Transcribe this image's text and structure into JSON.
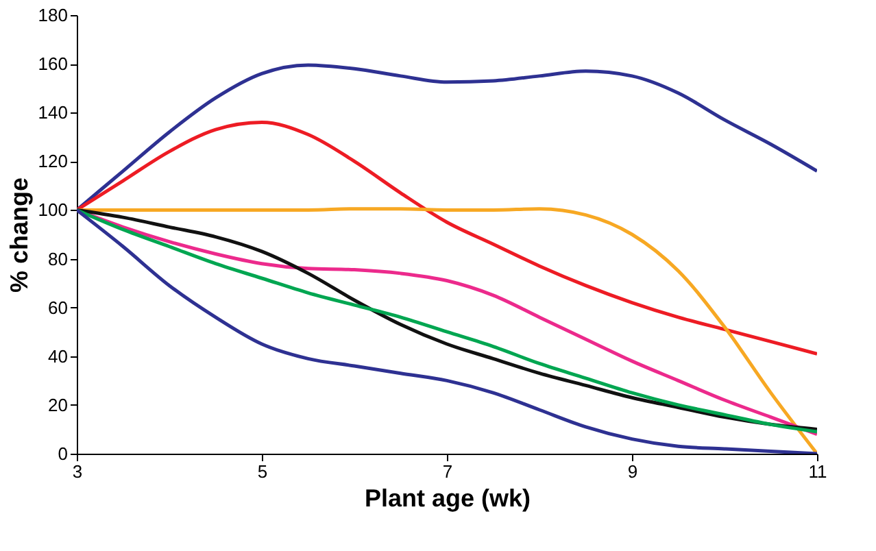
{
  "chart_data": {
    "type": "line",
    "xlabel": "Plant age (wk)",
    "ylabel": "% change",
    "x": [
      3,
      3.5,
      4,
      4.5,
      5,
      5.5,
      6,
      6.5,
      7,
      7.5,
      8,
      8.5,
      9,
      9.5,
      10,
      10.5,
      11
    ],
    "xlim": [
      3,
      11
    ],
    "xticks": [
      3,
      5,
      7,
      9,
      11
    ],
    "ylim": [
      0,
      180
    ],
    "yticks": [
      0,
      20,
      40,
      60,
      80,
      100,
      120,
      140,
      160,
      180
    ],
    "grid": false,
    "marker": "none",
    "line_style": "solid",
    "series": [
      {
        "color": "#2e3192",
        "values": [
          100,
          116,
          132,
          146,
          156,
          159.5,
          158,
          155,
          152.5,
          153,
          155,
          157,
          155,
          148,
          137,
          127,
          116
        ]
      },
      {
        "color": "#ed1c24",
        "values": [
          100,
          112,
          124,
          133,
          136,
          131,
          120,
          107,
          95,
          86,
          77,
          69,
          62,
          56,
          51,
          46,
          41
        ]
      },
      {
        "color": "#f7a823",
        "values": [
          100,
          100,
          100,
          100,
          100,
          100,
          100.5,
          100.5,
          100,
          100,
          100.5,
          98,
          90,
          75,
          52,
          25,
          0
        ]
      },
      {
        "color": "#ec2a8c",
        "values": [
          100,
          93,
          87,
          82,
          78,
          76,
          75.5,
          74,
          71,
          65,
          56,
          47,
          38,
          30,
          22,
          15,
          8
        ]
      },
      {
        "color": "#111111",
        "values": [
          100,
          97,
          93,
          89,
          83,
          74,
          63,
          53,
          45,
          39,
          33,
          28,
          23,
          19,
          15,
          12,
          10
        ]
      },
      {
        "color": "#00a651",
        "values": [
          100,
          92,
          85,
          78,
          72,
          66,
          61,
          56,
          50,
          44,
          37,
          31,
          25,
          20,
          16,
          12,
          9
        ]
      },
      {
        "color": "#2e3192",
        "values": [
          100,
          85,
          69,
          56,
          45,
          39,
          36,
          33,
          30,
          25,
          18,
          11,
          6,
          3,
          2,
          1,
          0
        ]
      }
    ]
  }
}
